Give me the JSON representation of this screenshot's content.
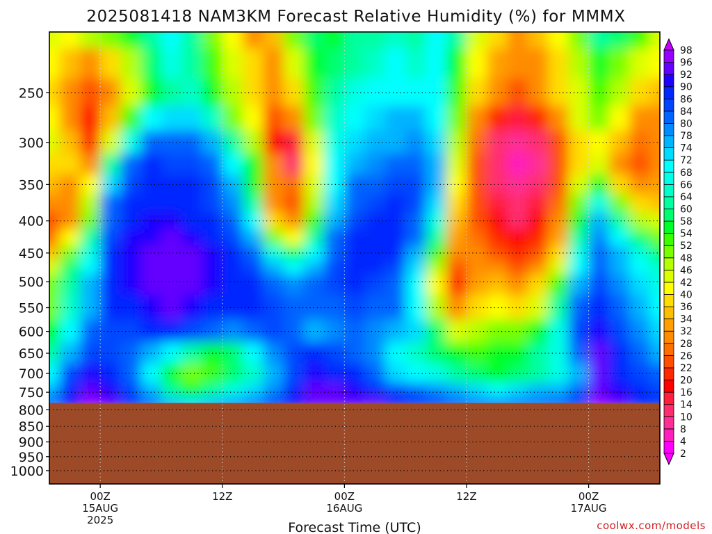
{
  "chart_data": {
    "type": "heatmap",
    "title": "2025081418 NAM3KM Forecast Relative Humidity (%) for MMMX",
    "xlabel": "Forecast Time (UTC)",
    "ylabel": "",
    "credit": "coolwx.com/models",
    "y_scale": "log",
    "ylim": [
      1050,
      200
    ],
    "xlim": [
      -5,
      55
    ],
    "y_ticks": [
      250,
      300,
      350,
      400,
      450,
      500,
      550,
      600,
      650,
      700,
      750,
      800,
      850,
      900,
      950,
      1000
    ],
    "x_ticks": [
      {
        "x": 0,
        "label": "00Z",
        "sub": "15AUG",
        "sub2": "2025"
      },
      {
        "x": 12,
        "label": "12Z",
        "sub": "",
        "sub2": ""
      },
      {
        "x": 24,
        "label": "00Z",
        "sub": "16AUG",
        "sub2": ""
      },
      {
        "x": 36,
        "label": "12Z",
        "sub": "",
        "sub2": ""
      },
      {
        "x": 48,
        "label": "00Z",
        "sub": "17AUG",
        "sub2": ""
      }
    ],
    "surface_pressure_hpa": 780,
    "colorbar": {
      "levels": [
        2,
        4,
        8,
        10,
        14,
        16,
        20,
        22,
        26,
        28,
        32,
        34,
        36,
        40,
        42,
        46,
        48,
        52,
        54,
        58,
        60,
        64,
        66,
        68,
        72,
        74,
        78,
        80,
        84,
        86,
        90,
        92,
        96,
        98
      ],
      "colors": [
        "#ff00ff",
        "#ff00ff",
        "#ff1fbe",
        "#ff2d96",
        "#ff2d70",
        "#ff1e3c",
        "#ff0000",
        "#ff2800",
        "#ff5000",
        "#ff6e00",
        "#ff8c00",
        "#ffa000",
        "#ffbe00",
        "#ffdc00",
        "#ffff00",
        "#dcff00",
        "#b4ff00",
        "#78ff00",
        "#3cff00",
        "#00ff28",
        "#00ff6e",
        "#00ffa0",
        "#00ffc8",
        "#00ffe6",
        "#00ffff",
        "#00dcff",
        "#00b4ff",
        "#008cff",
        "#0064ff",
        "#0046ff",
        "#0028ff",
        "#1e00ff",
        "#6400ff",
        "#9600ff",
        "#c800ff"
      ]
    },
    "times": [
      -5,
      -3,
      -1,
      1,
      3,
      5,
      7,
      9,
      11,
      13,
      15,
      17,
      19,
      21,
      23,
      25,
      27,
      29,
      31,
      33,
      35,
      37,
      39,
      41,
      43,
      45,
      47,
      49,
      51,
      53,
      55
    ],
    "levels": [
      200,
      225,
      250,
      275,
      300,
      325,
      350,
      375,
      400,
      425,
      450,
      475,
      500,
      550,
      600,
      650,
      700,
      750,
      780
    ],
    "values": [
      [
        42,
        40,
        46,
        48,
        54,
        60,
        70,
        62,
        48,
        40,
        30,
        34,
        50,
        58,
        54,
        60,
        60,
        64,
        62,
        68,
        60,
        42,
        38,
        30,
        34,
        40,
        48,
        60,
        58,
        52,
        44
      ],
      [
        40,
        34,
        30,
        36,
        46,
        58,
        66,
        62,
        52,
        44,
        36,
        30,
        44,
        56,
        58,
        62,
        64,
        68,
        64,
        68,
        56,
        40,
        32,
        28,
        30,
        38,
        46,
        56,
        50,
        44,
        40
      ],
      [
        38,
        28,
        22,
        30,
        44,
        56,
        62,
        64,
        56,
        46,
        38,
        28,
        38,
        52,
        62,
        66,
        68,
        70,
        68,
        68,
        52,
        36,
        28,
        24,
        28,
        36,
        44,
        52,
        46,
        36,
        34
      ],
      [
        40,
        30,
        18,
        34,
        52,
        68,
        72,
        72,
        64,
        50,
        40,
        22,
        30,
        50,
        64,
        70,
        72,
        74,
        74,
        70,
        48,
        30,
        20,
        14,
        20,
        30,
        42,
        48,
        40,
        30,
        30
      ],
      [
        42,
        34,
        20,
        44,
        66,
        80,
        82,
        80,
        76,
        62,
        46,
        18,
        14,
        42,
        66,
        72,
        74,
        76,
        78,
        72,
        46,
        26,
        12,
        8,
        10,
        24,
        38,
        40,
        34,
        26,
        28
      ],
      [
        38,
        36,
        30,
        60,
        80,
        86,
        84,
        84,
        82,
        70,
        54,
        28,
        10,
        40,
        68,
        76,
        78,
        80,
        82,
        74,
        42,
        24,
        10,
        6,
        8,
        22,
        36,
        44,
        30,
        24,
        28
      ],
      [
        34,
        30,
        40,
        72,
        84,
        88,
        86,
        86,
        84,
        76,
        56,
        30,
        26,
        42,
        70,
        80,
        82,
        84,
        84,
        74,
        40,
        22,
        12,
        8,
        12,
        24,
        44,
        54,
        36,
        28,
        32
      ],
      [
        30,
        28,
        46,
        80,
        86,
        88,
        88,
        86,
        84,
        78,
        62,
        30,
        24,
        46,
        72,
        82,
        84,
        86,
        84,
        72,
        36,
        22,
        14,
        10,
        14,
        26,
        50,
        66,
        50,
        36,
        34
      ],
      [
        22,
        30,
        50,
        82,
        88,
        90,
        90,
        88,
        86,
        80,
        70,
        36,
        28,
        52,
        76,
        84,
        86,
        88,
        82,
        66,
        34,
        24,
        16,
        12,
        18,
        28,
        56,
        74,
        62,
        46,
        42
      ],
      [
        26,
        40,
        60,
        84,
        90,
        90,
        92,
        90,
        88,
        84,
        76,
        50,
        40,
        62,
        80,
        86,
        88,
        88,
        80,
        60,
        32,
        26,
        20,
        16,
        20,
        32,
        62,
        78,
        70,
        58,
        50
      ],
      [
        34,
        50,
        66,
        86,
        90,
        92,
        92,
        92,
        90,
        86,
        80,
        66,
        58,
        70,
        82,
        86,
        88,
        86,
        76,
        52,
        28,
        28,
        24,
        20,
        24,
        36,
        66,
        80,
        74,
        66,
        58
      ],
      [
        44,
        58,
        70,
        86,
        90,
        92,
        92,
        92,
        90,
        88,
        84,
        76,
        70,
        76,
        84,
        86,
        86,
        84,
        72,
        46,
        24,
        30,
        28,
        24,
        30,
        44,
        70,
        82,
        76,
        70,
        64
      ],
      [
        48,
        62,
        74,
        86,
        90,
        92,
        92,
        92,
        90,
        88,
        86,
        82,
        78,
        80,
        84,
        86,
        84,
        82,
        70,
        40,
        20,
        32,
        34,
        28,
        36,
        52,
        76,
        84,
        78,
        72,
        66
      ],
      [
        50,
        64,
        76,
        86,
        88,
        90,
        92,
        90,
        88,
        86,
        86,
        84,
        80,
        80,
        82,
        84,
        82,
        80,
        70,
        46,
        28,
        36,
        40,
        36,
        44,
        60,
        82,
        86,
        80,
        74,
        68
      ],
      [
        54,
        68,
        80,
        84,
        84,
        86,
        88,
        84,
        80,
        78,
        82,
        84,
        80,
        76,
        78,
        80,
        78,
        76,
        72,
        58,
        44,
        46,
        50,
        48,
        54,
        66,
        84,
        90,
        84,
        78,
        72
      ],
      [
        62,
        76,
        84,
        84,
        80,
        76,
        70,
        62,
        56,
        58,
        68,
        78,
        84,
        86,
        84,
        82,
        78,
        70,
        64,
        58,
        54,
        52,
        54,
        56,
        60,
        66,
        80,
        92,
        88,
        82,
        76
      ],
      [
        70,
        84,
        90,
        88,
        82,
        70,
        56,
        48,
        52,
        58,
        64,
        74,
        84,
        90,
        88,
        86,
        80,
        72,
        70,
        66,
        62,
        58,
        56,
        58,
        62,
        66,
        74,
        92,
        88,
        84,
        80
      ],
      [
        76,
        88,
        94,
        90,
        84,
        74,
        62,
        56,
        60,
        66,
        72,
        78,
        86,
        92,
        92,
        90,
        88,
        84,
        80,
        78,
        76,
        72,
        70,
        72,
        74,
        76,
        80,
        94,
        90,
        86,
        84
      ],
      [
        80,
        90,
        96,
        92,
        88,
        82,
        76,
        72,
        74,
        78,
        82,
        86,
        90,
        94,
        94,
        94,
        92,
        90,
        88,
        86,
        84,
        82,
        80,
        80,
        82,
        84,
        86,
        96,
        92,
        88,
        86
      ]
    ]
  }
}
